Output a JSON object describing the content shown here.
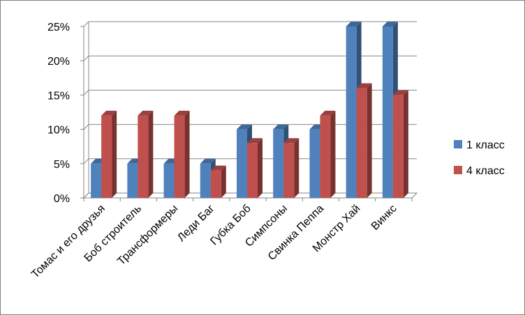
{
  "chart_data": {
    "type": "bar",
    "categories": [
      "Томас и его друзья",
      "Боб строитель",
      "Трансформеры",
      "Леди Баг",
      "Губка Боб",
      "Симпсоны",
      "Свинка Пеппа",
      "Монстр Хай",
      "Винкс"
    ],
    "series": [
      {
        "name": "1 класс",
        "values": [
          5,
          5,
          5,
          5,
          10,
          10,
          10,
          25,
          25
        ],
        "color": "#4F81BD"
      },
      {
        "name": "4 класс",
        "values": [
          12,
          12,
          12,
          4,
          8,
          8,
          12,
          16,
          15
        ],
        "color": "#C0504D"
      }
    ],
    "y_ticks": [
      "0%",
      "5%",
      "10%",
      "15%",
      "20%",
      "25%"
    ],
    "ylim": [
      0,
      25
    ],
    "grid": true,
    "legend_position": "right",
    "three_d": true
  }
}
